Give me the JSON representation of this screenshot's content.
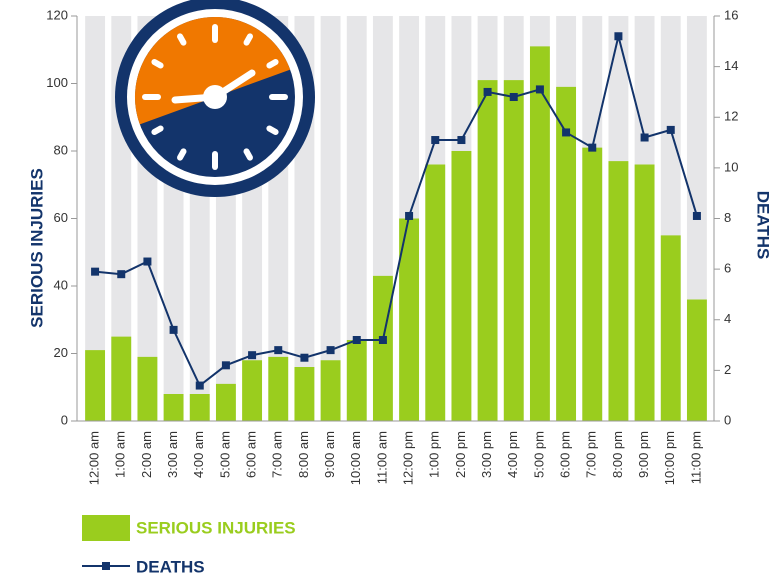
{
  "chart_data": {
    "type": "bar_line",
    "ylabel": "SERIOUS INJURIES",
    "y2label": "DEATHS",
    "categories": [
      "12:00 am",
      "1:00 am",
      "2:00 am",
      "3:00 am",
      "4:00 am",
      "5:00 am",
      "6:00 am",
      "7:00 am",
      "8:00 am",
      "9:00 am",
      "10:00 am",
      "11:00 am",
      "12:00 pm",
      "1:00 pm",
      "2:00 pm",
      "3:00 pm",
      "4:00 pm",
      "5:00 pm",
      "6:00 pm",
      "7:00 pm",
      "8:00 pm",
      "9:00 pm",
      "10:00 pm",
      "11:00 pm"
    ],
    "series": [
      {
        "name": "SERIOUS INJURIES",
        "color": "#9acd1e",
        "type": "bar",
        "values": [
          21,
          25,
          19,
          8,
          8,
          11,
          18,
          19,
          16,
          18,
          24,
          43,
          60,
          76,
          80,
          101,
          101,
          111,
          99,
          81,
          77,
          76,
          55,
          36
        ]
      },
      {
        "name": "DEATHS",
        "color": "#13346b",
        "type": "line",
        "axis": "y2",
        "values": [
          5.9,
          5.8,
          6.3,
          3.6,
          1.4,
          2.2,
          2.6,
          2.8,
          2.5,
          2.8,
          3.2,
          3.2,
          8.1,
          11.1,
          11.1,
          13,
          12.8,
          13.1,
          11.4,
          10.8,
          15.2,
          11.2,
          11.5,
          8.1
        ]
      }
    ],
    "ylim": [
      0,
      120
    ],
    "yticks": [
      0,
      20,
      40,
      60,
      80,
      100,
      120
    ],
    "y2lim": [
      0,
      16
    ],
    "y2ticks": [
      0,
      2,
      4,
      6,
      8,
      10,
      12,
      14,
      16
    ]
  }
}
